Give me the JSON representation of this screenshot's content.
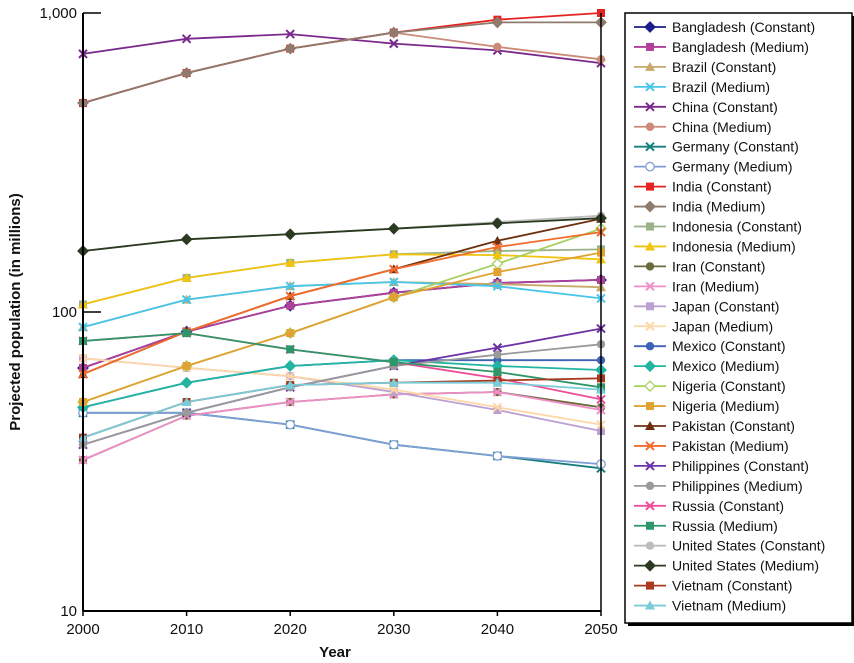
{
  "chart_data": {
    "type": "line",
    "title": "",
    "xlabel": "Year",
    "ylabel": "Projected population (in millions)",
    "yscale": "log",
    "ylim": [
      10,
      1000
    ],
    "xlim": [
      2000,
      2050
    ],
    "x": [
      2000,
      2010,
      2020,
      2030,
      2040,
      2050
    ],
    "x_tick_labels": [
      "2000",
      "2010",
      "2020",
      "2030",
      "2040",
      "2050"
    ],
    "y_tick_labels": [
      "10",
      "100",
      "1,000"
    ],
    "y_tick_values": [
      10,
      100,
      1000
    ],
    "grid": false,
    "legend_position": "right",
    "series": [
      {
        "name": "Bangladesh (Constant)",
        "color": "#1a1f8c",
        "marker": "diamond",
        "values": [
          65,
          86,
          105,
          116,
          125,
          128
        ]
      },
      {
        "name": "Bangladesh (Medium)",
        "color": "#b0409a",
        "marker": "square",
        "values": [
          65,
          86,
          105,
          116,
          125,
          128
        ]
      },
      {
        "name": "Brazil (Constant)",
        "color": "#c8a96a",
        "marker": "triangle",
        "values": [
          89,
          110,
          122,
          126,
          124,
          121
        ]
      },
      {
        "name": "Brazil (Medium)",
        "color": "#47c6ea",
        "marker": "x",
        "values": [
          89,
          110,
          122,
          126,
          122,
          111
        ]
      },
      {
        "name": "China (Constant)",
        "color": "#7a2a8c",
        "marker": "x",
        "values": [
          730,
          820,
          850,
          790,
          750,
          680
        ]
      },
      {
        "name": "China (Medium)",
        "color": "#cc8a78",
        "marker": "circle",
        "values": [
          500,
          630,
          760,
          860,
          770,
          700
        ]
      },
      {
        "name": "Germany (Constant)",
        "color": "#147f7d",
        "marker": "x",
        "values": [
          46,
          46,
          42,
          36,
          33,
          30
        ]
      },
      {
        "name": "Germany (Medium)",
        "color": "#7f9fd4",
        "marker": "circle-open",
        "values": [
          46,
          46,
          42,
          36,
          33,
          31
        ]
      },
      {
        "name": "India (Constant)",
        "color": "#e52421",
        "marker": "square",
        "values": [
          500,
          630,
          760,
          860,
          950,
          1000
        ]
      },
      {
        "name": "India (Medium)",
        "color": "#8f7a6e",
        "marker": "diamond",
        "values": [
          500,
          630,
          760,
          860,
          930,
          930
        ]
      },
      {
        "name": "Indonesia (Constant)",
        "color": "#99b28a",
        "marker": "square",
        "values": [
          106,
          130,
          146,
          156,
          160,
          162
        ]
      },
      {
        "name": "Indonesia (Medium)",
        "color": "#f1c40f",
        "marker": "triangle",
        "values": [
          106,
          130,
          146,
          156,
          155,
          150
        ]
      },
      {
        "name": "Iran (Constant)",
        "color": "#6b6a3c",
        "marker": "circle",
        "values": [
          32,
          45,
          50,
          53,
          54,
          48
        ]
      },
      {
        "name": "Iran (Medium)",
        "color": "#f08ec8",
        "marker": "x",
        "values": [
          32,
          45,
          50,
          53,
          54,
          47
        ]
      },
      {
        "name": "Japan (Constant)",
        "color": "#bca0d4",
        "marker": "square",
        "values": [
          70,
          65,
          61,
          54,
          47,
          40
        ]
      },
      {
        "name": "Japan (Medium)",
        "color": "#fdd7a6",
        "marker": "x",
        "values": [
          70,
          65,
          61,
          55,
          48,
          42
        ]
      },
      {
        "name": "Mexico (Constant)",
        "color": "#3d62b6",
        "marker": "circle",
        "values": [
          48,
          58,
          66,
          69,
          69,
          69
        ]
      },
      {
        "name": "Mexico (Medium)",
        "color": "#21b5a2",
        "marker": "diamond",
        "values": [
          48,
          58,
          66,
          69,
          66,
          64
        ]
      },
      {
        "name": "Nigeria (Constant)",
        "color": "#a7d05d",
        "marker": "diamond-open",
        "values": [
          50,
          66,
          85,
          112,
          145,
          190
        ]
      },
      {
        "name": "Nigeria (Medium)",
        "color": "#e0a232",
        "marker": "square",
        "values": [
          50,
          66,
          85,
          112,
          136,
          158
        ]
      },
      {
        "name": "Pakistan (Constant)",
        "color": "#6d2f0f",
        "marker": "triangle",
        "values": [
          62,
          86,
          113,
          139,
          173,
          205
        ]
      },
      {
        "name": "Pakistan (Medium)",
        "color": "#f26c2c",
        "marker": "x",
        "values": [
          62,
          86,
          113,
          139,
          165,
          185
        ]
      },
      {
        "name": "Philippines (Constant)",
        "color": "#6c32a6",
        "marker": "x",
        "values": [
          36,
          46,
          56,
          66,
          76,
          88
        ]
      },
      {
        "name": "Philippines (Medium)",
        "color": "#9a9a9a",
        "marker": "circle",
        "values": [
          36,
          46,
          56,
          66,
          72,
          78
        ]
      },
      {
        "name": "Russia (Constant)",
        "color": "#ec4f97",
        "marker": "x",
        "values": [
          80,
          85,
          75,
          68,
          60,
          51
        ]
      },
      {
        "name": "Russia (Medium)",
        "color": "#2f9669",
        "marker": "square",
        "values": [
          80,
          85,
          75,
          68,
          63,
          56
        ]
      },
      {
        "name": "United States (Constant)",
        "color": "#bdbdbd",
        "marker": "circle",
        "values": [
          160,
          175,
          182,
          190,
          200,
          210
        ]
      },
      {
        "name": "United States (Medium)",
        "color": "#2b3a20",
        "marker": "diamond",
        "values": [
          160,
          175,
          182,
          190,
          198,
          206
        ]
      },
      {
        "name": "Vietnam (Constant)",
        "color": "#a93a1f",
        "marker": "square",
        "values": [
          38,
          50,
          57,
          58,
          59,
          60
        ]
      },
      {
        "name": "Vietnam (Medium)",
        "color": "#79ccd8",
        "marker": "triangle",
        "values": [
          38,
          50,
          57,
          58,
          58,
          55
        ]
      }
    ]
  }
}
